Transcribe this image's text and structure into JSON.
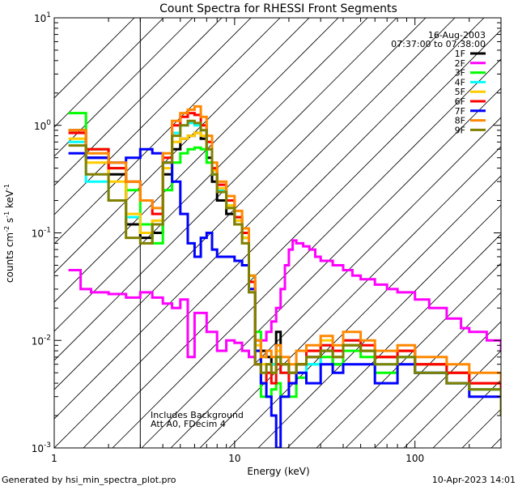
{
  "chart_data": {
    "type": "line",
    "title": "Count Spectra for RHESSI Front Segments",
    "xlabel": "Energy (keV)",
    "ylabel_parts": [
      "counts cm",
      "-2",
      " s",
      "-1",
      " keV",
      "-1"
    ],
    "xscale": "log",
    "yscale": "log",
    "xlim": [
      1,
      300
    ],
    "ylim": [
      0.001,
      10
    ],
    "x_ticks": [
      {
        "v": 1,
        "label": "1"
      },
      {
        "v": 10,
        "label": "10"
      },
      {
        "v": 100,
        "label": "100"
      }
    ],
    "y_ticks": [
      {
        "v": 0.001,
        "mant": "10",
        "exp": "-3"
      },
      {
        "v": 0.01,
        "mant": "10",
        "exp": "-2"
      },
      {
        "v": 0.1,
        "mant": "10",
        "exp": "-1"
      },
      {
        "v": 1,
        "mant": "10",
        "exp": "0"
      },
      {
        "v": 10,
        "mant": "10",
        "exp": "1"
      }
    ],
    "hatch_region": {
      "x_from": 1,
      "x_to": 3
    },
    "legend": {
      "date": "16-Aug-2003",
      "time_range": "07:37:00 to 07:38:00",
      "placement": "top-right"
    },
    "annotations": [
      "Includes Background",
      "Att A0, FDecim 4"
    ],
    "series": [
      {
        "name": "1F",
        "color": "#000000",
        "x": [
          1.2,
          1.5,
          2,
          2.5,
          3,
          3.5,
          4,
          4.5,
          5,
          5.5,
          6,
          6.5,
          7,
          7.5,
          8,
          9,
          10,
          11,
          12,
          13,
          14,
          15,
          16,
          17,
          18,
          20,
          22,
          25,
          30,
          35,
          40,
          50,
          60,
          80,
          100,
          150,
          200,
          300
        ],
        "y": [
          0.9,
          0.5,
          0.35,
          0.12,
          0.09,
          0.1,
          0.35,
          0.6,
          0.75,
          0.8,
          0.85,
          0.75,
          0.5,
          0.3,
          0.2,
          0.15,
          0.12,
          0.09,
          0.03,
          0.01,
          0.008,
          0.007,
          0.006,
          0.012,
          0.006,
          0.005,
          0.006,
          0.007,
          0.008,
          0.006,
          0.009,
          0.008,
          0.007,
          0.008,
          0.006,
          0.005,
          0.004,
          0.003
        ]
      },
      {
        "name": "2F",
        "color": "#ff00ff",
        "x": [
          1.2,
          1.4,
          1.6,
          2,
          2.5,
          3,
          3.5,
          4,
          4.5,
          5,
          5.5,
          6,
          7,
          8,
          9,
          10,
          11,
          12,
          13,
          14,
          15,
          16,
          17,
          18,
          19,
          20,
          21,
          22,
          24,
          26,
          28,
          30,
          35,
          40,
          45,
          50,
          60,
          70,
          80,
          100,
          120,
          150,
          180,
          200,
          250,
          300
        ],
        "y": [
          0.045,
          0.03,
          0.028,
          0.027,
          0.025,
          0.028,
          0.025,
          0.022,
          0.02,
          0.024,
          0.007,
          0.018,
          0.012,
          0.008,
          0.01,
          0.0095,
          0.008,
          0.007,
          0.008,
          0.01,
          0.012,
          0.015,
          0.02,
          0.03,
          0.05,
          0.07,
          0.085,
          0.08,
          0.075,
          0.07,
          0.06,
          0.055,
          0.05,
          0.045,
          0.04,
          0.037,
          0.033,
          0.03,
          0.028,
          0.024,
          0.02,
          0.016,
          0.013,
          0.012,
          0.01,
          0.008
        ]
      },
      {
        "name": "3F",
        "color": "#00ff00",
        "x": [
          1.2,
          1.5,
          2,
          2.5,
          3,
          3.5,
          4,
          4.5,
          5,
          5.5,
          6,
          6.5,
          7,
          7.5,
          8,
          9,
          10,
          11,
          12,
          13,
          14,
          15,
          16,
          17,
          18,
          20,
          22,
          25,
          30,
          35,
          40,
          50,
          60,
          80,
          100,
          150,
          200,
          300
        ],
        "y": [
          1.3,
          0.6,
          0.4,
          0.25,
          0.12,
          0.08,
          0.25,
          0.45,
          0.55,
          0.6,
          0.62,
          0.6,
          0.45,
          0.35,
          0.25,
          0.18,
          0.14,
          0.1,
          0.04,
          0.012,
          0.003,
          0.003,
          0.0035,
          0.004,
          0.003,
          0.003,
          0.0045,
          0.006,
          0.007,
          0.006,
          0.008,
          0.007,
          0.005,
          0.007,
          0.005,
          0.004,
          0.0035,
          0.003
        ]
      },
      {
        "name": "4F",
        "color": "#00ffff",
        "x": [
          1.2,
          1.5,
          2,
          2.5,
          3,
          3.5,
          4,
          4.5,
          5,
          5.5,
          6,
          6.5,
          7,
          7.5,
          8,
          9,
          10,
          11,
          12,
          13,
          14,
          15,
          16,
          17,
          18,
          20,
          22,
          25,
          30,
          35,
          40,
          50,
          60,
          80,
          100,
          150,
          200,
          300
        ],
        "y": [
          0.7,
          0.3,
          0.2,
          0.14,
          0.1,
          0.12,
          0.45,
          0.85,
          1.0,
          1.05,
          1.0,
          0.9,
          0.6,
          0.35,
          0.25,
          0.18,
          0.13,
          0.09,
          0.03,
          0.008,
          0.004,
          0.005,
          0.006,
          0.007,
          0.005,
          0.004,
          0.005,
          0.006,
          0.009,
          0.007,
          0.01,
          0.008,
          0.006,
          0.007,
          0.005,
          0.004,
          0.0035,
          0.003
        ]
      },
      {
        "name": "5F",
        "color": "#ffcc00",
        "x": [
          1.2,
          1.5,
          2,
          2.5,
          3,
          3.5,
          4,
          4.5,
          5,
          5.5,
          6,
          6.5,
          7,
          7.5,
          8,
          9,
          10,
          11,
          12,
          13,
          14,
          15,
          16,
          17,
          18,
          20,
          22,
          25,
          30,
          35,
          40,
          50,
          60,
          80,
          100,
          150,
          200,
          300
        ],
        "y": [
          0.75,
          0.45,
          0.3,
          0.15,
          0.1,
          0.13,
          0.4,
          0.7,
          0.75,
          0.8,
          0.85,
          0.8,
          0.6,
          0.38,
          0.26,
          0.18,
          0.13,
          0.09,
          0.03,
          0.009,
          0.006,
          0.006,
          0.005,
          0.008,
          0.006,
          0.005,
          0.006,
          0.008,
          0.01,
          0.007,
          0.009,
          0.008,
          0.007,
          0.008,
          0.006,
          0.005,
          0.004,
          0.0035
        ]
      },
      {
        "name": "6F",
        "color": "#ff0000",
        "x": [
          1.2,
          1.5,
          2,
          2.5,
          3,
          3.5,
          4,
          4.5,
          5,
          5.5,
          6,
          6.5,
          7,
          7.5,
          8,
          9,
          10,
          11,
          12,
          13,
          14,
          15,
          16,
          17,
          18,
          20,
          22,
          25,
          30,
          35,
          40,
          50,
          60,
          80,
          100,
          150,
          200,
          300
        ],
        "y": [
          0.85,
          0.6,
          0.4,
          0.3,
          0.2,
          0.15,
          0.5,
          1.0,
          1.2,
          1.3,
          1.25,
          1.0,
          0.7,
          0.4,
          0.28,
          0.2,
          0.14,
          0.1,
          0.035,
          0.006,
          0.004,
          0.005,
          0.004,
          0.006,
          0.005,
          0.004,
          0.006,
          0.008,
          0.009,
          0.008,
          0.01,
          0.009,
          0.007,
          0.008,
          0.006,
          0.005,
          0.004,
          0.003
        ]
      },
      {
        "name": "7F",
        "color": "#0000ff",
        "x": [
          1.2,
          1.5,
          2,
          2.5,
          3,
          3.5,
          4,
          4.5,
          5,
          5.5,
          6,
          6.5,
          7,
          7.5,
          8,
          9,
          10,
          11,
          12,
          13,
          14,
          15,
          16,
          17,
          18,
          20,
          22,
          25,
          30,
          35,
          40,
          50,
          60,
          80,
          100,
          150,
          200,
          300
        ],
        "y": [
          0.55,
          0.5,
          0.45,
          0.5,
          0.6,
          0.55,
          0.45,
          0.3,
          0.15,
          0.08,
          0.06,
          0.09,
          0.1,
          0.07,
          0.06,
          0.06,
          0.055,
          0.05,
          0.03,
          0.008,
          0.004,
          0.003,
          0.002,
          0.001,
          0.003,
          0.004,
          0.005,
          0.004,
          0.006,
          0.005,
          0.006,
          0.006,
          0.004,
          0.006,
          0.005,
          0.004,
          0.003,
          0.003
        ]
      },
      {
        "name": "8F",
        "color": "#ff8800",
        "x": [
          1.2,
          1.5,
          2,
          2.5,
          3,
          3.5,
          4,
          4.5,
          5,
          5.5,
          6,
          6.5,
          7,
          7.5,
          8,
          9,
          10,
          11,
          12,
          13,
          14,
          15,
          16,
          17,
          18,
          20,
          22,
          25,
          30,
          35,
          40,
          50,
          60,
          80,
          100,
          150,
          200,
          300
        ],
        "y": [
          0.9,
          0.55,
          0.45,
          0.3,
          0.2,
          0.17,
          0.55,
          1.1,
          1.3,
          1.4,
          1.5,
          1.2,
          0.8,
          0.45,
          0.3,
          0.22,
          0.16,
          0.11,
          0.04,
          0.01,
          0.007,
          0.008,
          0.007,
          0.009,
          0.007,
          0.006,
          0.008,
          0.009,
          0.011,
          0.009,
          0.012,
          0.01,
          0.008,
          0.009,
          0.007,
          0.006,
          0.005,
          0.004
        ]
      },
      {
        "name": "9F",
        "color": "#808000",
        "x": [
          1.2,
          1.5,
          2,
          2.5,
          3,
          3.5,
          4,
          4.5,
          5,
          5.5,
          6,
          6.5,
          7,
          7.5,
          8,
          9,
          10,
          11,
          12,
          13,
          14,
          15,
          16,
          17,
          18,
          20,
          22,
          25,
          30,
          35,
          40,
          50,
          60,
          80,
          100,
          150,
          200,
          300
        ],
        "y": [
          0.65,
          0.35,
          0.2,
          0.09,
          0.08,
          0.12,
          0.45,
          0.8,
          1.0,
          1.1,
          1.05,
          0.9,
          0.6,
          0.35,
          0.24,
          0.17,
          0.12,
          0.08,
          0.028,
          0.006,
          0.005,
          0.006,
          0.005,
          0.007,
          0.006,
          0.005,
          0.006,
          0.007,
          0.008,
          0.007,
          0.009,
          0.008,
          0.006,
          0.007,
          0.005,
          0.004,
          0.0035,
          0.002
        ]
      }
    ]
  },
  "footer": {
    "generated_by": "Generated by hsi_min_spectra_plot.pro",
    "timestamp": "10-Apr-2023 14:01"
  }
}
